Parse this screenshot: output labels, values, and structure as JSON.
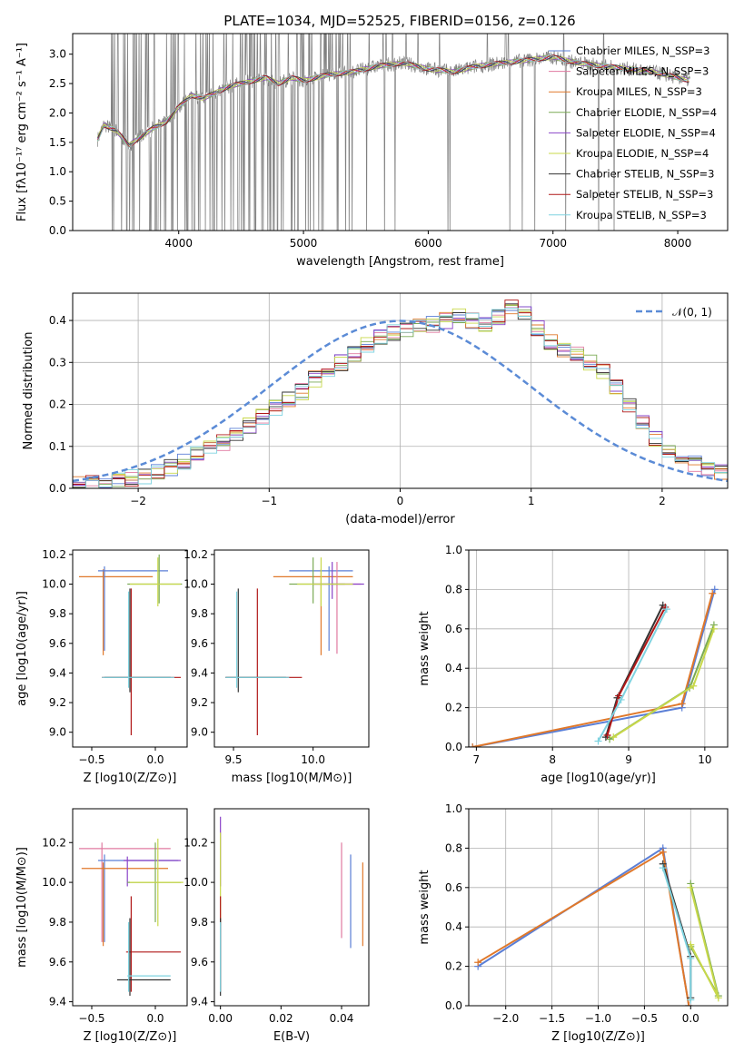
{
  "title": "PLATE=1034, MJD=52525, FIBERID=0156, z=0.126",
  "colors": {
    "c_miles": "#5b7fd6",
    "s_miles": "#e07aa0",
    "k_miles": "#e0782a",
    "c_elodie": "#7aaa55",
    "s_elodie": "#8a44c8",
    "k_elodie": "#c8d84a",
    "c_stelib": "#333333",
    "s_stelib": "#b01818",
    "k_stelib": "#7fd3e0",
    "obs": "#808080",
    "gauss": "#5b8bd6"
  },
  "legend_spectrum": [
    "Chabrier MILES, N_SSP=3",
    "Salpeter MILES, N_SSP=3",
    "Kroupa MILES, N_SSP=3",
    "Chabrier ELODIE, N_SSP=4",
    "Salpeter ELODIE, N_SSP=4",
    "Kroupa ELODIE, N_SSP=4",
    "Chabrier STELIB, N_SSP=3",
    "Salpeter STELIB, N_SSP=3",
    "Kroupa STELIB, N_SSP=3"
  ],
  "legend_hist": "𝒩(0, 1)",
  "chart_data": [
    {
      "type": "line",
      "panel": "spectrum",
      "xlabel": "wavelength [Angstrom, rest frame]",
      "ylabel": "Flux [fλ10⁻¹⁷ erg cm⁻² s⁻¹ A⁻¹]",
      "xlim": [
        3150,
        8400
      ],
      "ylim": [
        0,
        3.35
      ],
      "xticks": [
        4000,
        5000,
        6000,
        7000,
        8000
      ],
      "yticks": [
        0.0,
        0.5,
        1.0,
        1.5,
        2.0,
        2.5,
        3.0
      ],
      "grid": false,
      "legend_position": "upper right",
      "continuum": {
        "x": [
          3350,
          3400,
          3500,
          3600,
          3700,
          3800,
          3900,
          4000,
          4100,
          4200,
          4300,
          4400,
          4500,
          4600,
          4700,
          4800,
          4900,
          5000,
          5200,
          5400,
          5600,
          5800,
          6000,
          6200,
          6400,
          6600,
          6800,
          7000,
          7200,
          7400,
          7600,
          7800,
          8000,
          8100
        ],
        "y": [
          1.55,
          1.8,
          1.7,
          1.45,
          1.6,
          1.75,
          1.85,
          2.1,
          2.3,
          2.25,
          2.35,
          2.45,
          2.5,
          2.55,
          2.6,
          2.5,
          2.6,
          2.55,
          2.65,
          2.7,
          2.8,
          2.85,
          2.75,
          2.7,
          2.8,
          2.85,
          2.9,
          2.95,
          2.85,
          2.8,
          2.75,
          2.7,
          2.6,
          2.55
        ]
      }
    },
    {
      "type": "line",
      "panel": "residual histogram",
      "xlabel": "(data-model)/error",
      "ylabel": "Normed distribution",
      "xlim": [
        -2.5,
        2.5
      ],
      "ylim": [
        0,
        0.465
      ],
      "xticks": [
        -2,
        -1,
        0,
        1,
        2
      ],
      "yticks": [
        0.0,
        0.1,
        0.2,
        0.3,
        0.4
      ],
      "grid": true,
      "legend_position": "upper right",
      "bin_width": 0.1,
      "hist_base": [
        0.01,
        0.012,
        0.015,
        0.02,
        0.025,
        0.03,
        0.04,
        0.05,
        0.065,
        0.08,
        0.095,
        0.11,
        0.13,
        0.15,
        0.17,
        0.19,
        0.21,
        0.23,
        0.26,
        0.28,
        0.3,
        0.32,
        0.34,
        0.36,
        0.37,
        0.38,
        0.39,
        0.39,
        0.4,
        0.41,
        0.4,
        0.39,
        0.41,
        0.43,
        0.42,
        0.38,
        0.35,
        0.33,
        0.32,
        0.3,
        0.28,
        0.24,
        0.2,
        0.16,
        0.12,
        0.09,
        0.07,
        0.06,
        0.05,
        0.04
      ]
    },
    {
      "type": "scatter",
      "panel": "age vs Z",
      "xlabel": "Z [log10(Z/Z⊙)]",
      "ylabel": "age  [log10(age/yr)]",
      "xlim": [
        -0.65,
        0.25
      ],
      "ylim": [
        8.9,
        10.23
      ],
      "xticks": [
        -0.5,
        0.0
      ],
      "yticks": [
        9.0,
        9.2,
        9.4,
        9.6,
        9.8,
        10.0,
        10.2
      ]
    },
    {
      "type": "scatter",
      "panel": "age vs mass",
      "xlabel": "mass [log10(M/M⊙)]",
      "ylabel": "",
      "xlim": [
        9.38,
        10.35
      ],
      "ylim": [
        8.9,
        10.23
      ],
      "xticks": [
        9.5,
        10.0
      ],
      "yticks": [
        9.0,
        9.2,
        9.4,
        9.6,
        9.8,
        10.0,
        10.2
      ]
    },
    {
      "type": "line",
      "panel": "mass weight vs age",
      "xlabel": "age  [log10(age/yr)]",
      "ylabel": "mass weight",
      "xlim": [
        6.9,
        10.3
      ],
      "ylim": [
        0,
        1.0
      ],
      "xticks": [
        7,
        8,
        9,
        10
      ],
      "yticks": [
        0.0,
        0.2,
        0.4,
        0.6,
        0.8,
        1.0
      ],
      "grid": true,
      "series": [
        {
          "key": "c_miles",
          "x": [
            6.95,
            9.7,
            10.13
          ],
          "y": [
            0.0,
            0.2,
            0.8
          ]
        },
        {
          "key": "k_miles",
          "x": [
            6.95,
            9.7,
            10.1
          ],
          "y": [
            0.0,
            0.22,
            0.78
          ]
        },
        {
          "key": "c_elodie",
          "x": [
            8.75,
            9.8,
            10.12
          ],
          "y": [
            0.04,
            0.3,
            0.62
          ]
        },
        {
          "key": "k_elodie",
          "x": [
            8.8,
            9.85,
            10.12
          ],
          "y": [
            0.05,
            0.31,
            0.6
          ]
        },
        {
          "key": "c_stelib",
          "x": [
            8.7,
            8.85,
            9.45
          ],
          "y": [
            0.05,
            0.25,
            0.72
          ]
        },
        {
          "key": "s_stelib",
          "x": [
            8.72,
            8.87,
            9.48
          ],
          "y": [
            0.06,
            0.26,
            0.71
          ]
        },
        {
          "key": "k_stelib",
          "x": [
            8.6,
            8.9,
            9.5
          ],
          "y": [
            0.03,
            0.24,
            0.7
          ]
        }
      ]
    },
    {
      "type": "scatter",
      "panel": "mass vs Z",
      "xlabel": "Z [log10(Z/Z⊙)]",
      "ylabel": "mass [log10(M/M⊙)]",
      "xlim": [
        -0.65,
        0.25
      ],
      "ylim": [
        9.38,
        10.37
      ],
      "xticks": [
        -0.5,
        0.0
      ],
      "yticks": [
        9.4,
        9.6,
        9.8,
        10.0,
        10.2
      ]
    },
    {
      "type": "scatter",
      "panel": "mass vs E(B-V)",
      "xlabel": "E(B-V)",
      "ylabel": "",
      "xlim": [
        -0.002,
        0.049
      ],
      "ylim": [
        9.38,
        10.37
      ],
      "xticks": [
        0.0,
        0.02,
        0.04
      ],
      "yticks": [
        9.4,
        9.6,
        9.8,
        10.0,
        10.2
      ]
    },
    {
      "type": "line",
      "panel": "mass weight vs Z",
      "xlabel": "Z [log10(Z/Z⊙)]",
      "ylabel": "mass weight",
      "xlim": [
        -2.4,
        0.4
      ],
      "ylim": [
        0,
        1.0
      ],
      "xticks": [
        -2.0,
        -1.5,
        -1.0,
        -0.5,
        0.0
      ],
      "yticks": [
        0.0,
        0.2,
        0.4,
        0.6,
        0.8,
        1.0
      ],
      "grid": true,
      "series": [
        {
          "key": "c_miles",
          "x": [
            -2.3,
            -0.3,
            -0.02
          ],
          "y": [
            0.2,
            0.8,
            0.0
          ]
        },
        {
          "key": "k_miles",
          "x": [
            -2.3,
            -0.3,
            -0.02
          ],
          "y": [
            0.22,
            0.78,
            0.0
          ]
        },
        {
          "key": "c_elodie",
          "x": [
            0.0,
            0.3,
            0.0
          ],
          "y": [
            0.62,
            0.05,
            0.3
          ]
        },
        {
          "key": "k_elodie",
          "x": [
            0.0,
            0.3,
            0.0
          ],
          "y": [
            0.6,
            0.04,
            0.31
          ]
        },
        {
          "key": "c_stelib",
          "x": [
            -0.3,
            0.0,
            0.0
          ],
          "y": [
            0.72,
            0.25,
            0.04
          ]
        },
        {
          "key": "k_stelib",
          "x": [
            -0.3,
            0.0,
            0.0
          ],
          "y": [
            0.7,
            0.24,
            0.03
          ]
        }
      ]
    }
  ]
}
